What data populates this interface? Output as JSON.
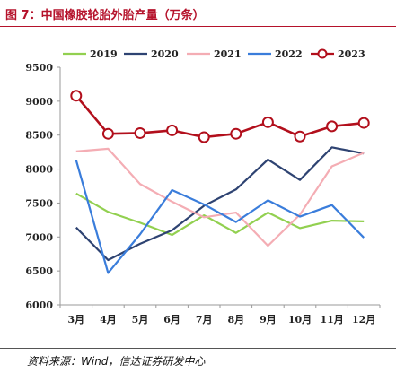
{
  "header": {
    "title": "图 7：中国橡胶轮胎外胎产量（万条）"
  },
  "footer": {
    "source": "资料来源：Wind，信达证券研发中心"
  },
  "colors": {
    "2019": "#92d050",
    "2020": "#2e4372",
    "2021": "#f4adb4",
    "2022": "#3a7ddb",
    "2023": "#b20f1c",
    "title": "#b5122b",
    "axis": "#9a9a9a"
  },
  "chart_data": {
    "type": "line",
    "title": "",
    "xlabel": "",
    "ylabel": "",
    "categories": [
      "3月",
      "4月",
      "5月",
      "6月",
      "7月",
      "8月",
      "9月",
      "10月",
      "11月",
      "12月"
    ],
    "ylim": [
      6000,
      9500
    ],
    "yticks": [
      6000,
      6500,
      7000,
      7500,
      8000,
      8500,
      9000,
      9500
    ],
    "grid": false,
    "legend_position": "top",
    "series": [
      {
        "name": "2019",
        "values": [
          7640,
          7370,
          7210,
          7030,
          7320,
          7060,
          7360,
          7130,
          7240,
          7230
        ]
      },
      {
        "name": "2020",
        "values": [
          7140,
          6660,
          6900,
          7100,
          7460,
          7700,
          8140,
          7840,
          8320,
          8230
        ]
      },
      {
        "name": "2021",
        "values": [
          8260,
          8300,
          7780,
          7520,
          7290,
          7360,
          6870,
          7330,
          8040,
          8240
        ]
      },
      {
        "name": "2022",
        "values": [
          8130,
          6470,
          7040,
          7690,
          7480,
          7220,
          7540,
          7300,
          7470,
          6990
        ]
      },
      {
        "name": "2023",
        "values": [
          9080,
          8520,
          8530,
          8570,
          8470,
          8520,
          8690,
          8480,
          8630,
          8680
        ]
      }
    ]
  }
}
